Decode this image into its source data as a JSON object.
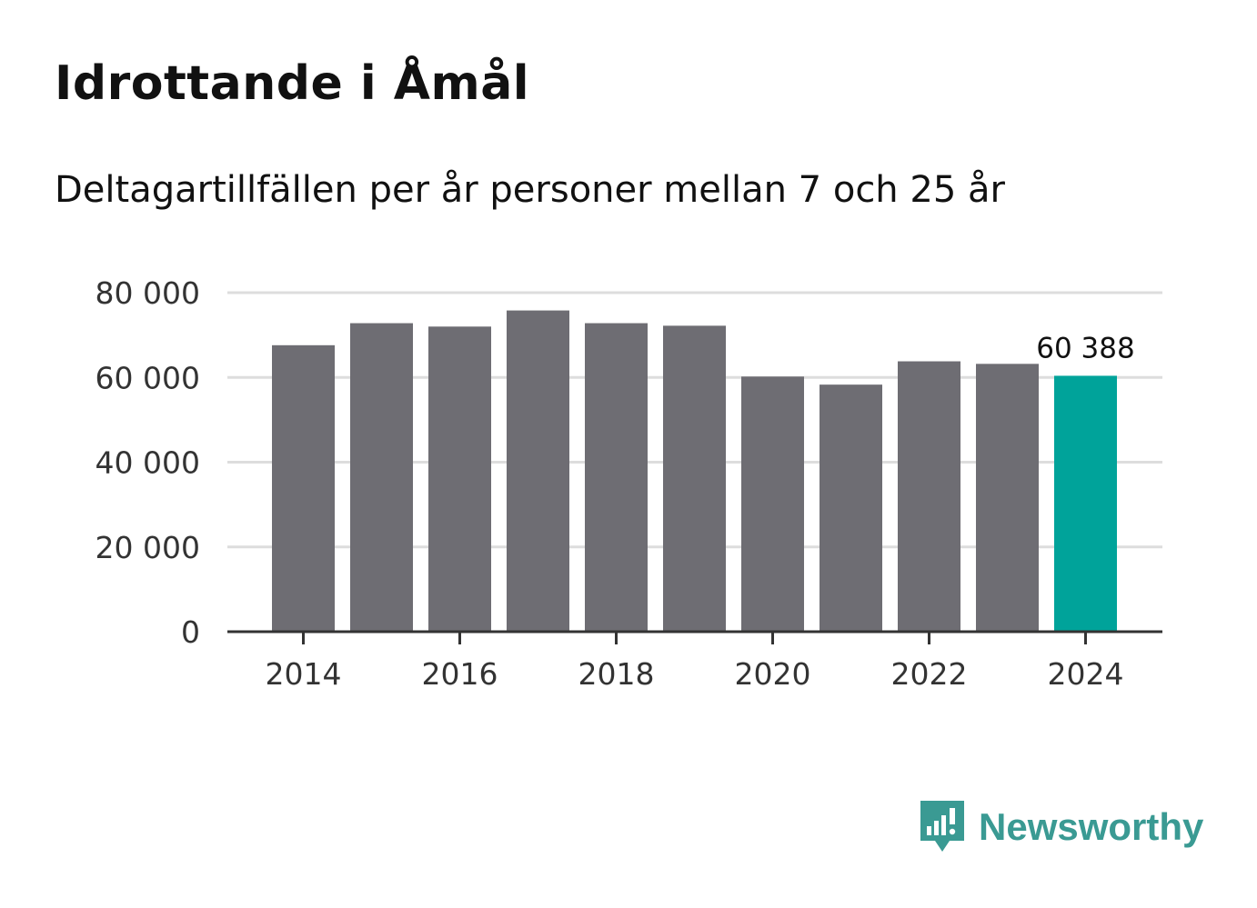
{
  "title": "Idrottande i Åmål",
  "subtitle": "Deltagartillfällen per år personer mellan 7 och 25 år",
  "brand": {
    "name": "Newsworthy",
    "icon": "newsworthy-logo-icon",
    "color": "#3a9a93"
  },
  "colors": {
    "bar": "#6e6d73",
    "highlight": "#00a39a",
    "grid": "#dddddd",
    "axis": "#333333"
  },
  "chart_data": {
    "type": "bar",
    "title": "Idrottande i Åmål",
    "subtitle": "Deltagartillfällen per år personer mellan 7 och 25 år",
    "xlabel": "",
    "ylabel": "",
    "categories": [
      "2014",
      "2015",
      "2016",
      "2017",
      "2018",
      "2019",
      "2020",
      "2021",
      "2022",
      "2023",
      "2024"
    ],
    "values": [
      67600,
      72800,
      72000,
      75800,
      72800,
      72200,
      60200,
      58300,
      63800,
      63200,
      60388
    ],
    "highlight_index": 10,
    "highlight_label": "60 388",
    "ylim": [
      0,
      80000
    ],
    "y_ticks": [
      0,
      20000,
      40000,
      60000,
      80000
    ],
    "y_tick_labels": [
      "0",
      "20 000",
      "40 000",
      "60 000",
      "80 000"
    ],
    "x_ticks": [
      "2014",
      "2016",
      "2018",
      "2020",
      "2022",
      "2024"
    ],
    "grid": true,
    "legend": "none"
  }
}
